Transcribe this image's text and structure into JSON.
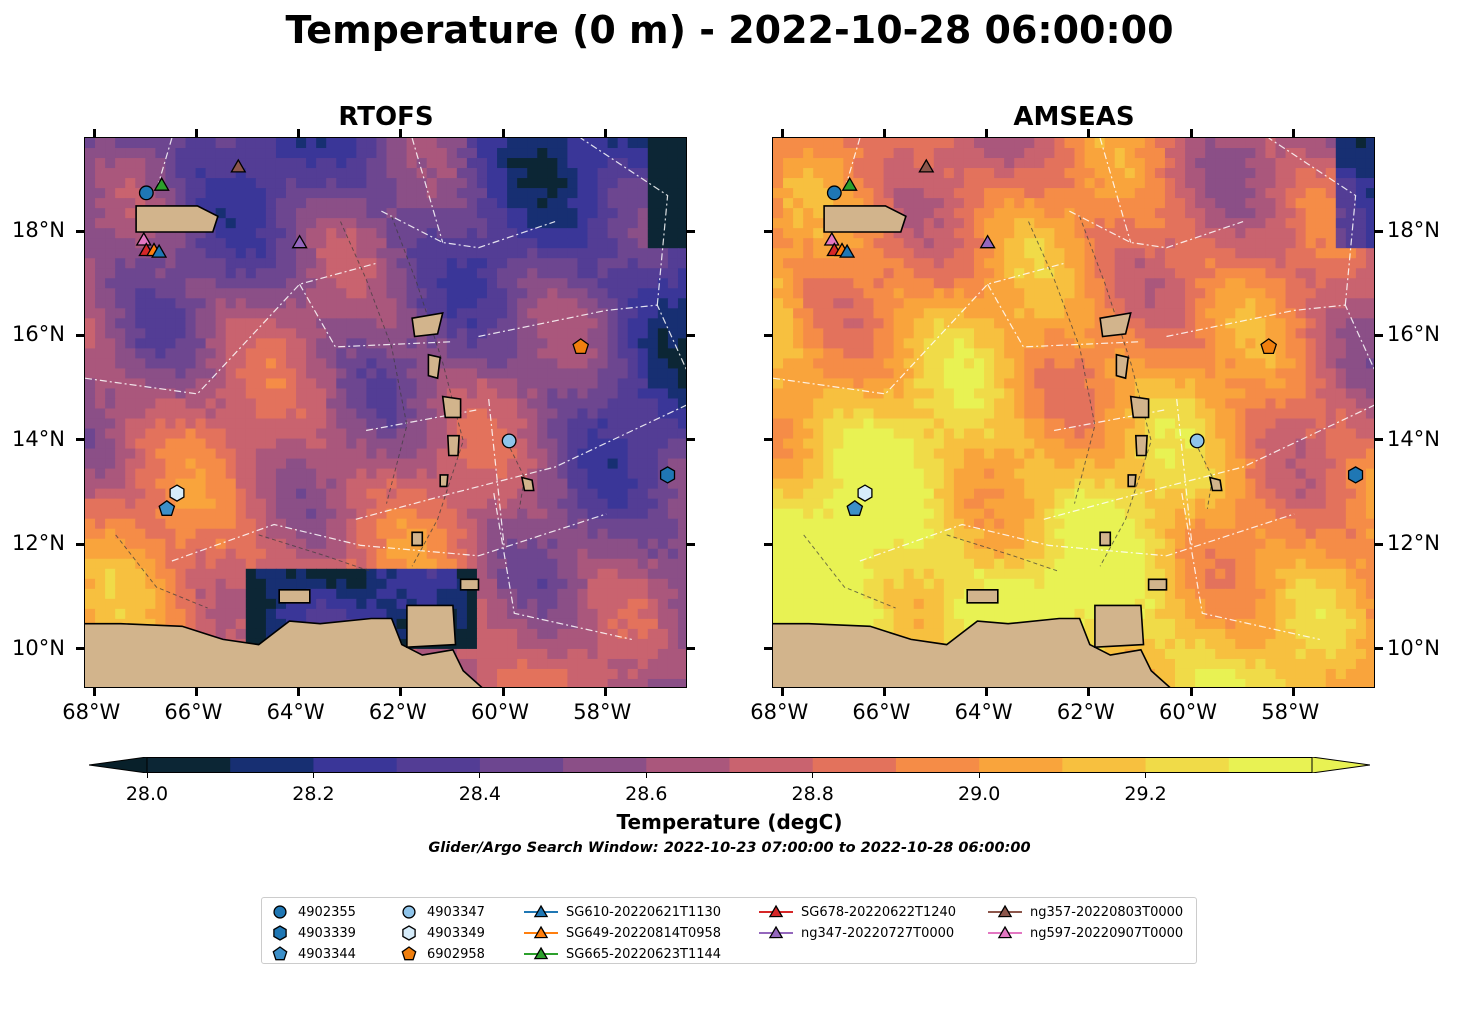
{
  "title": "Temperature (0 m) - 2022-10-28 06:00:00",
  "panels": [
    {
      "title": "RTOFS",
      "palette_bias": 0.0
    },
    {
      "title": "AMSEAS",
      "palette_bias": 0.35
    }
  ],
  "x_ticks": [
    "68°W",
    "66°W",
    "64°W",
    "62°W",
    "60°W",
    "58°W"
  ],
  "y_ticks": [
    "18°N",
    "16°N",
    "14°N",
    "12°N",
    "10°N"
  ],
  "colorbar": {
    "label": "Temperature (degC)",
    "tick_labels": [
      "28.0",
      "28.2",
      "28.4",
      "28.6",
      "28.8",
      "29.0",
      "29.2"
    ],
    "colors": [
      "#0c2635",
      "#172f72",
      "#3a3698",
      "#533d95",
      "#6d4690",
      "#8b4f87",
      "#aa577c",
      "#c9636f",
      "#e3725c",
      "#f58c47",
      "#f9a43c",
      "#f7c03f",
      "#f0db48",
      "#e8f253"
    ],
    "under_color": "#08202a",
    "over_color": "#e8f253"
  },
  "search_window": "Glider/Argo Search Window: 2022-10-23 07:00:00 to 2022-10-28 06:00:00",
  "land_color": "#d2b48c",
  "legend": [
    {
      "label": "4902355",
      "shape": "circle",
      "color": "#1f77b4",
      "line": false
    },
    {
      "label": "4903339",
      "shape": "hexagon",
      "color": "#1f77b4",
      "line": false
    },
    {
      "label": "4903344",
      "shape": "pentagon",
      "color": "#3c8fc8",
      "line": false
    },
    {
      "label": "4903347",
      "shape": "circle",
      "color": "#8fc4ea",
      "line": false
    },
    {
      "label": "4903349",
      "shape": "hexagon",
      "color": "#d6ecfa",
      "line": false
    },
    {
      "label": "6902958",
      "shape": "pentagon",
      "color": "#f07f0e",
      "line": false
    },
    {
      "label": "SG610-20220621T1130",
      "shape": "triangle",
      "color": "#1f77b4",
      "line": true
    },
    {
      "label": "SG649-20220814T0958",
      "shape": "triangle",
      "color": "#ff7f0e",
      "line": true
    },
    {
      "label": "SG665-20220623T1144",
      "shape": "triangle",
      "color": "#2ca02c",
      "line": true
    },
    {
      "label": "SG678-20220622T1240",
      "shape": "triangle",
      "color": "#d62728",
      "line": true
    },
    {
      "label": "ng347-20220727T0000",
      "shape": "triangle",
      "color": "#9467bd",
      "line": true
    },
    {
      "label": "ng357-20220803T0000",
      "shape": "triangle",
      "color": "#8c564b",
      "line": true
    },
    {
      "label": "ng597-20220907T0000",
      "shape": "triangle",
      "color": "#e377c2",
      "line": true
    }
  ],
  "markers": [
    {
      "id": "4902355",
      "lon": -67.0,
      "lat": 18.75
    },
    {
      "id": "SG665-20220623T1144",
      "lon": -66.7,
      "lat": 18.9
    },
    {
      "id": "ng357-20220803T0000",
      "lon": -65.2,
      "lat": 19.25
    },
    {
      "id": "ng597-20220907T0000",
      "lon": -67.05,
      "lat": 17.85
    },
    {
      "id": "SG678-20220622T1240",
      "lon": -67.0,
      "lat": 17.65
    },
    {
      "id": "SG649-20220814T0958",
      "lon": -66.85,
      "lat": 17.65
    },
    {
      "id": "SG610-20220621T1130",
      "lon": -66.75,
      "lat": 17.62
    },
    {
      "id": "ng347-20220727T0000",
      "lon": -64.0,
      "lat": 17.8
    },
    {
      "id": "6902958",
      "lon": -58.5,
      "lat": 15.8
    },
    {
      "id": "4903347",
      "lon": -59.9,
      "lat": 14.0
    },
    {
      "id": "4903339",
      "lon": -56.8,
      "lat": 13.35
    },
    {
      "id": "4903349",
      "lon": -66.4,
      "lat": 13.0
    },
    {
      "id": "4903344",
      "lon": -66.6,
      "lat": 12.7
    }
  ]
}
